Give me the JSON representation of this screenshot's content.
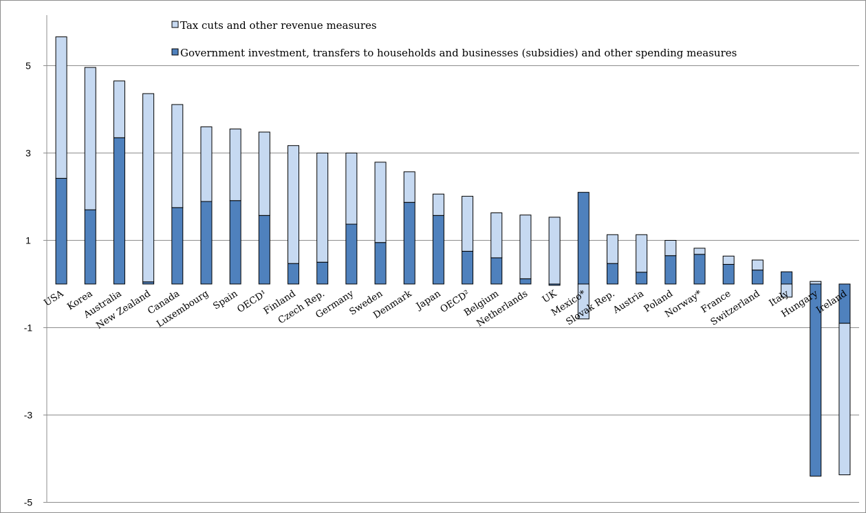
{
  "chart_data": {
    "type": "bar",
    "stacked": true,
    "categories": [
      "USA",
      "Korea",
      "Australia",
      "New Zealand",
      "Canada",
      "Luxembourg",
      "Spain",
      "OECD¹",
      "Finland",
      "Czech Rep.",
      "Germany",
      "Sweden",
      "Denmark",
      "Japan",
      "OECD²",
      "Belgium",
      "Netherlands",
      "UK",
      "Mexico*",
      "Slovak Rep.",
      "Austria",
      "Poland",
      "Norway*",
      "France",
      "Switzerland",
      "Italy",
      "Hungary",
      "Ireland"
    ],
    "series": [
      {
        "name": "Government investment, transfers to households and businesses (subsidies) and other spending measures",
        "color": "#4f81bd",
        "values": [
          2.42,
          1.7,
          3.35,
          0.05,
          1.75,
          1.89,
          1.91,
          1.57,
          0.47,
          0.5,
          1.37,
          0.95,
          1.87,
          1.57,
          0.75,
          0.6,
          0.12,
          -0.03,
          2.1,
          0.47,
          0.27,
          0.65,
          0.68,
          0.45,
          0.32,
          0.28,
          -4.4,
          -0.9
        ]
      },
      {
        "name": "Tax cuts and other revenue measures",
        "color": "#c6d9f1",
        "values": [
          3.24,
          3.26,
          1.3,
          4.31,
          2.36,
          1.71,
          1.64,
          1.91,
          2.7,
          2.5,
          1.63,
          1.84,
          0.7,
          0.49,
          1.26,
          1.03,
          1.46,
          1.53,
          -0.8,
          0.66,
          0.86,
          0.35,
          0.14,
          0.19,
          0.23,
          -0.3,
          0.06,
          -3.47
        ]
      }
    ],
    "yticks": [
      -5,
      -3,
      -1,
      1,
      3,
      5
    ],
    "ylim": [
      -5,
      6
    ],
    "grid": true,
    "legend": "top"
  }
}
